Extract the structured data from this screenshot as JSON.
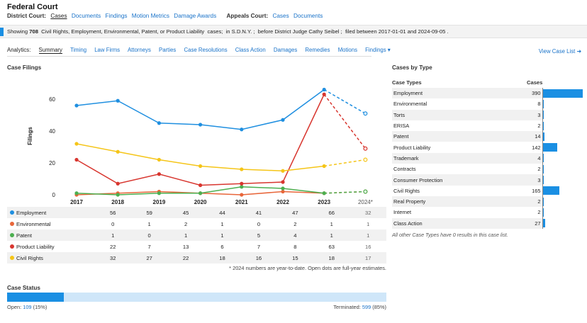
{
  "header": {
    "title": "Federal Court"
  },
  "court_nav": {
    "district_label": "District Court:",
    "district_links": [
      "Cases",
      "Documents",
      "Findings",
      "Motion Metrics",
      "Damage Awards"
    ],
    "appeals_label": "Appeals Court:",
    "appeals_links": [
      "Cases",
      "Documents"
    ]
  },
  "summary_bar": {
    "showing": "Showing",
    "count": "708",
    "types": "Civil Rights, Employment, Environmental, Patent, or Product Liability",
    "cases_word": "cases;",
    "venue": "in S.D.N.Y. ;",
    "judge": "before District Judge Cathy Seibel ;",
    "dates": "filed between 2017-01-01 and 2024-09-05 ."
  },
  "analytics": {
    "label": "Analytics:",
    "tabs": [
      "Summary",
      "Timing",
      "Law Firms",
      "Attorneys",
      "Parties",
      "Case Resolutions",
      "Class Action",
      "Damages",
      "Remedies",
      "Motions",
      "Findings ▾"
    ],
    "view_case_list": "View Case List"
  },
  "case_filings": {
    "title": "Case Filings",
    "footnote": "* 2024 numbers are year-to-date. Open dots are full-year estimates."
  },
  "chart_data": {
    "type": "line",
    "x": [
      "2017",
      "2018",
      "2019",
      "2020",
      "2021",
      "2022",
      "2023",
      "2024*"
    ],
    "ylabel": "Filings",
    "yticks": [
      0,
      20,
      40,
      60
    ],
    "ylim": [
      0,
      70
    ],
    "series": [
      {
        "name": "Employment",
        "color": "#1f8fe0",
        "values": [
          56,
          59,
          45,
          44,
          41,
          47,
          66,
          32
        ],
        "estimate_2024": 51
      },
      {
        "name": "Environmental",
        "color": "#e8663a",
        "values": [
          0,
          1,
          2,
          1,
          0,
          2,
          1,
          1
        ],
        "estimate_2024": 2
      },
      {
        "name": "Patent",
        "color": "#4caf50",
        "values": [
          1,
          0,
          1,
          1,
          5,
          4,
          1,
          1
        ],
        "estimate_2024": 2
      },
      {
        "name": "Product Liability",
        "color": "#d8362f",
        "values": [
          22,
          7,
          13,
          6,
          7,
          8,
          63,
          16
        ],
        "estimate_2024": 29
      },
      {
        "name": "Civil Rights",
        "color": "#f5c518",
        "values": [
          32,
          27,
          22,
          18,
          16,
          15,
          18,
          17
        ],
        "estimate_2024": 22
      }
    ]
  },
  "case_status": {
    "title": "Case Status",
    "open_label": "Open:",
    "open_count": "109",
    "open_pct": "(15%)",
    "open_fraction": 0.15,
    "terminated_label": "Terminated:",
    "terminated_count": "599",
    "terminated_pct": "(85%)"
  },
  "cases_by_type": {
    "title": "Cases by Type",
    "col_type": "Case Types",
    "col_cases": "Cases",
    "max": 390,
    "rows": [
      {
        "type": "Employment",
        "count": "390",
        "value": 390
      },
      {
        "type": "Environmental",
        "count": "8",
        "value": 8
      },
      {
        "type": "Torts",
        "count": "3",
        "value": 3
      },
      {
        "type": "ERISA",
        "count": "2",
        "value": 2
      },
      {
        "type": "Patent",
        "count": "14",
        "value": 14
      },
      {
        "type": "Product Liability",
        "count": "142",
        "value": 142
      },
      {
        "type": "Trademark",
        "count": "4",
        "value": 4
      },
      {
        "type": "Contracts",
        "count": "2",
        "value": 2
      },
      {
        "type": "Consumer Protection",
        "count": "3",
        "value": 3
      },
      {
        "type": "Civil Rights",
        "count": "165",
        "value": 165
      },
      {
        "type": "Real Property",
        "count": "2",
        "value": 2
      },
      {
        "type": "Internet",
        "count": "2",
        "value": 2
      },
      {
        "type": "Class Action",
        "count": "27",
        "value": 27
      }
    ],
    "note": "All other Case Types have 0 results in this case list."
  }
}
